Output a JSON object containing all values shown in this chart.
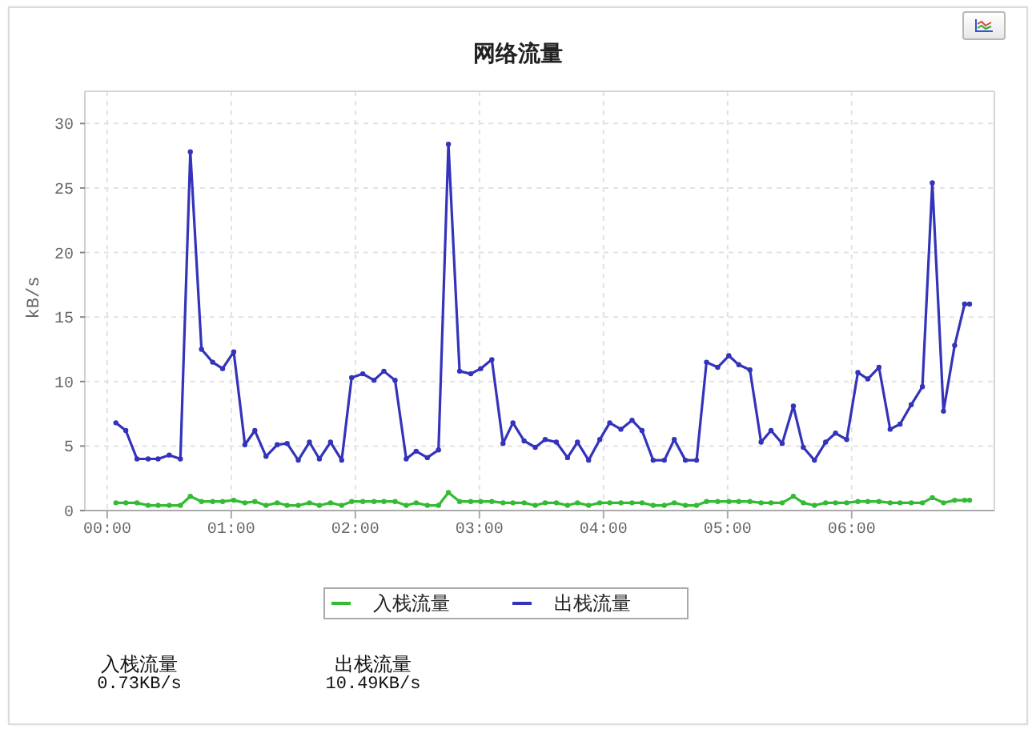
{
  "chart_data": {
    "type": "line",
    "title": "网络流量",
    "ylabel": "kB/s",
    "x": [
      0.07,
      0.15,
      0.24,
      0.33,
      0.41,
      0.5,
      0.59,
      0.67,
      0.76,
      0.85,
      0.93,
      1.02,
      1.11,
      1.19,
      1.28,
      1.37,
      1.45,
      1.54,
      1.63,
      1.71,
      1.8,
      1.89,
      1.97,
      2.06,
      2.15,
      2.23,
      2.32,
      2.41,
      2.49,
      2.58,
      2.67,
      2.75,
      2.84,
      2.93,
      3.01,
      3.1,
      3.19,
      3.27,
      3.36,
      3.45,
      3.53,
      3.62,
      3.71,
      3.79,
      3.88,
      3.97,
      4.05,
      4.14,
      4.23,
      4.31,
      4.4,
      4.49,
      4.57,
      4.66,
      4.75,
      4.83,
      4.92,
      5.01,
      5.09,
      5.18,
      5.27,
      5.35,
      5.44,
      5.53,
      5.61,
      5.7,
      5.79,
      5.87,
      5.96,
      6.05,
      6.13,
      6.22,
      6.31,
      6.39,
      6.48,
      6.57,
      6.65,
      6.74,
      6.83,
      6.91,
      6.95
    ],
    "series": [
      {
        "name": "入栈流量",
        "color": "#33bb33",
        "values": [
          0.6,
          0.6,
          0.6,
          0.4,
          0.4,
          0.4,
          0.4,
          1.1,
          0.7,
          0.7,
          0.7,
          0.8,
          0.6,
          0.7,
          0.4,
          0.6,
          0.4,
          0.4,
          0.6,
          0.4,
          0.6,
          0.4,
          0.7,
          0.7,
          0.7,
          0.7,
          0.7,
          0.4,
          0.6,
          0.4,
          0.4,
          1.4,
          0.7,
          0.7,
          0.7,
          0.7,
          0.6,
          0.6,
          0.6,
          0.4,
          0.6,
          0.6,
          0.4,
          0.6,
          0.4,
          0.6,
          0.6,
          0.6,
          0.6,
          0.6,
          0.4,
          0.4,
          0.6,
          0.4,
          0.4,
          0.7,
          0.7,
          0.7,
          0.7,
          0.7,
          0.6,
          0.6,
          0.6,
          1.1,
          0.6,
          0.4,
          0.6,
          0.6,
          0.6,
          0.7,
          0.7,
          0.7,
          0.6,
          0.6,
          0.6,
          0.6,
          1.0,
          0.6,
          0.8,
          0.8,
          0.8
        ]
      },
      {
        "name": "出栈流量",
        "color": "#3333bb",
        "values": [
          6.8,
          6.2,
          4.0,
          4.0,
          4.0,
          4.3,
          4.0,
          27.8,
          12.5,
          11.5,
          11.0,
          12.3,
          5.1,
          6.2,
          4.2,
          5.1,
          5.2,
          3.9,
          5.3,
          4.0,
          5.3,
          3.9,
          10.3,
          10.6,
          10.1,
          10.8,
          10.1,
          4.0,
          4.6,
          4.1,
          4.7,
          28.4,
          10.8,
          10.6,
          11.0,
          11.7,
          5.2,
          6.8,
          5.4,
          4.9,
          5.5,
          5.3,
          4.1,
          5.3,
          3.9,
          5.5,
          6.8,
          6.3,
          7.0,
          6.2,
          3.9,
          3.9,
          5.5,
          3.9,
          3.9,
          11.5,
          11.1,
          12.0,
          11.3,
          10.9,
          5.3,
          6.2,
          5.2,
          8.1,
          4.9,
          3.9,
          5.3,
          6.0,
          5.5,
          10.7,
          10.2,
          11.1,
          6.3,
          6.7,
          8.2,
          9.6,
          25.4,
          7.7,
          12.8,
          16.0,
          16.0
        ]
      }
    ],
    "xlim": [
      -0.18,
      7.15
    ],
    "ylim": [
      0,
      32.5
    ],
    "xticks": [
      {
        "value": 0,
        "label": "00:00"
      },
      {
        "value": 1,
        "label": "01:00"
      },
      {
        "value": 2,
        "label": "02:00"
      },
      {
        "value": 3,
        "label": "03:00"
      },
      {
        "value": 4,
        "label": "04:00"
      },
      {
        "value": 5,
        "label": "05:00"
      },
      {
        "value": 6,
        "label": "06:00"
      }
    ],
    "yticks": [
      0,
      5,
      10,
      15,
      20,
      25,
      30
    ],
    "grid": true,
    "legend": "bottom",
    "marker": "circle",
    "line_style": "solid",
    "annotations": [
      "入栈流量",
      "0.73KB/s",
      "出栈流量",
      "10.49KB/s"
    ]
  }
}
